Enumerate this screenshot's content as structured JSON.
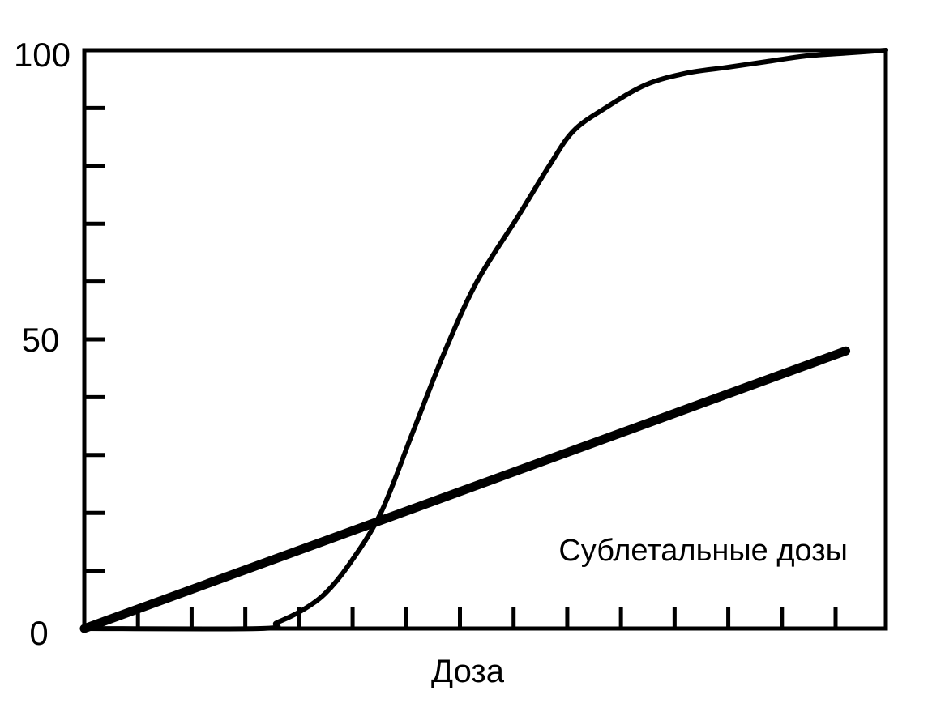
{
  "chart_data": {
    "type": "line",
    "title": "",
    "xlabel": "Доза",
    "ylabel": "",
    "ylim": [
      0,
      100
    ],
    "y_tick_labels": [
      "0",
      "50",
      "100"
    ],
    "x_tick_labels": [],
    "annotation": "Сублетальные дозы",
    "grid": false,
    "legend": "none",
    "series": [
      {
        "x": [
          0,
          0.22,
          0.24,
          0.27,
          0.3,
          0.33,
          0.37,
          0.41,
          0.45,
          0.49,
          0.54,
          0.58,
          0.61,
          0.65,
          0.7,
          0.75,
          0.8,
          0.85,
          0.9,
          0.95,
          1.0
        ],
        "values": [
          0,
          0,
          1,
          3,
          6,
          11,
          20,
          34,
          48,
          60,
          71,
          80,
          86,
          90,
          94,
          96,
          97,
          98,
          99,
          99.5,
          100
        ],
        "color": "#000000"
      },
      {
        "x": [
          0,
          0.95
        ],
        "values": [
          0,
          48
        ],
        "color": "#000000"
      }
    ]
  }
}
